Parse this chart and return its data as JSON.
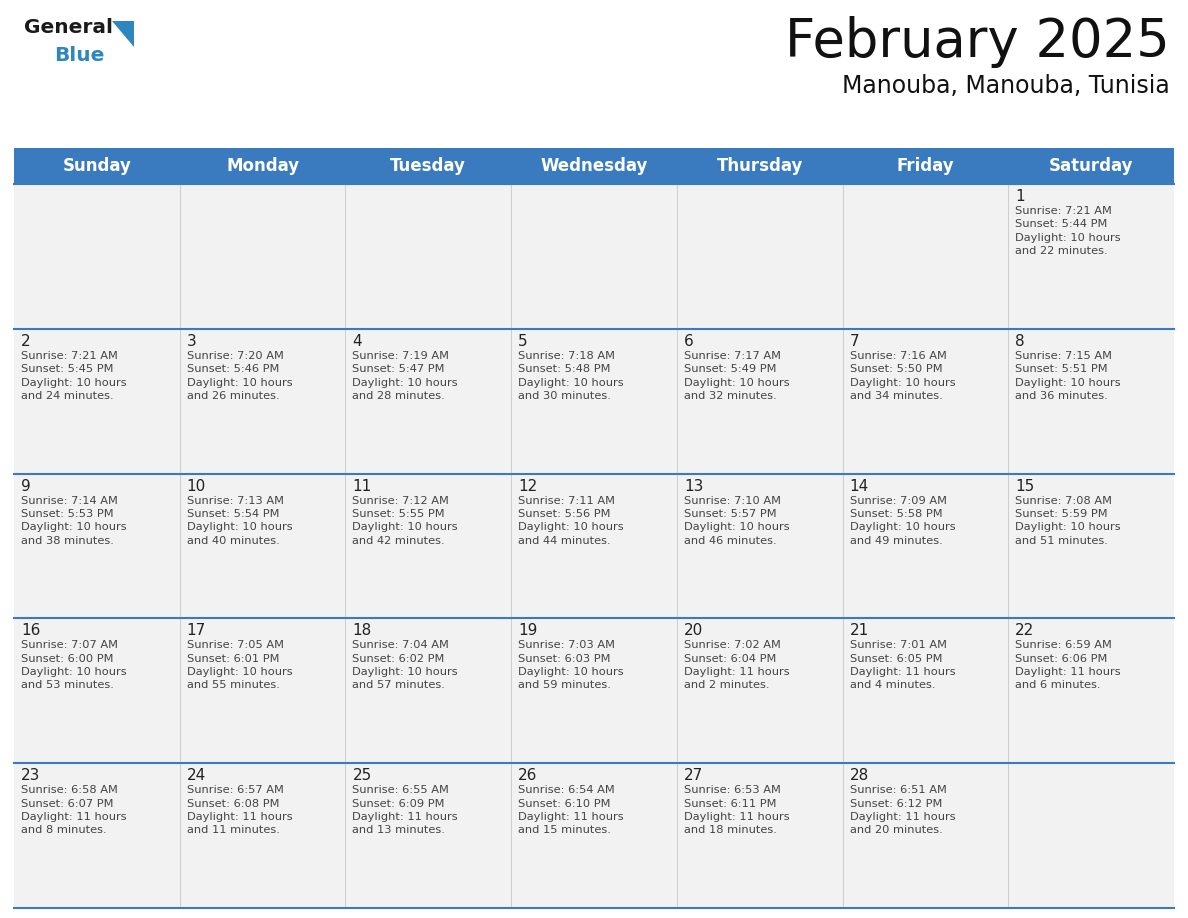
{
  "title": "February 2025",
  "subtitle": "Manouba, Manouba, Tunisia",
  "header_bg": "#3a7bbf",
  "header_text_color": "#ffffff",
  "header_font_size": 12,
  "day_names": [
    "Sunday",
    "Monday",
    "Tuesday",
    "Wednesday",
    "Thursday",
    "Friday",
    "Saturday"
  ],
  "title_font_size": 38,
  "subtitle_font_size": 17,
  "cell_text_color": "#444444",
  "day_num_color": "#222222",
  "info_font_size": 8.2,
  "day_num_font_size": 11,
  "cell_bg": "#f2f2f2",
  "line_color": "#3a7bbf",
  "logo_blue_color": "#2e86c1",
  "weeks": [
    {
      "days": [
        {
          "day": null,
          "info": null
        },
        {
          "day": null,
          "info": null
        },
        {
          "day": null,
          "info": null
        },
        {
          "day": null,
          "info": null
        },
        {
          "day": null,
          "info": null
        },
        {
          "day": null,
          "info": null
        },
        {
          "day": 1,
          "info": "Sunrise: 7:21 AM\nSunset: 5:44 PM\nDaylight: 10 hours\nand 22 minutes."
        }
      ]
    },
    {
      "days": [
        {
          "day": 2,
          "info": "Sunrise: 7:21 AM\nSunset: 5:45 PM\nDaylight: 10 hours\nand 24 minutes."
        },
        {
          "day": 3,
          "info": "Sunrise: 7:20 AM\nSunset: 5:46 PM\nDaylight: 10 hours\nand 26 minutes."
        },
        {
          "day": 4,
          "info": "Sunrise: 7:19 AM\nSunset: 5:47 PM\nDaylight: 10 hours\nand 28 minutes."
        },
        {
          "day": 5,
          "info": "Sunrise: 7:18 AM\nSunset: 5:48 PM\nDaylight: 10 hours\nand 30 minutes."
        },
        {
          "day": 6,
          "info": "Sunrise: 7:17 AM\nSunset: 5:49 PM\nDaylight: 10 hours\nand 32 minutes."
        },
        {
          "day": 7,
          "info": "Sunrise: 7:16 AM\nSunset: 5:50 PM\nDaylight: 10 hours\nand 34 minutes."
        },
        {
          "day": 8,
          "info": "Sunrise: 7:15 AM\nSunset: 5:51 PM\nDaylight: 10 hours\nand 36 minutes."
        }
      ]
    },
    {
      "days": [
        {
          "day": 9,
          "info": "Sunrise: 7:14 AM\nSunset: 5:53 PM\nDaylight: 10 hours\nand 38 minutes."
        },
        {
          "day": 10,
          "info": "Sunrise: 7:13 AM\nSunset: 5:54 PM\nDaylight: 10 hours\nand 40 minutes."
        },
        {
          "day": 11,
          "info": "Sunrise: 7:12 AM\nSunset: 5:55 PM\nDaylight: 10 hours\nand 42 minutes."
        },
        {
          "day": 12,
          "info": "Sunrise: 7:11 AM\nSunset: 5:56 PM\nDaylight: 10 hours\nand 44 minutes."
        },
        {
          "day": 13,
          "info": "Sunrise: 7:10 AM\nSunset: 5:57 PM\nDaylight: 10 hours\nand 46 minutes."
        },
        {
          "day": 14,
          "info": "Sunrise: 7:09 AM\nSunset: 5:58 PM\nDaylight: 10 hours\nand 49 minutes."
        },
        {
          "day": 15,
          "info": "Sunrise: 7:08 AM\nSunset: 5:59 PM\nDaylight: 10 hours\nand 51 minutes."
        }
      ]
    },
    {
      "days": [
        {
          "day": 16,
          "info": "Sunrise: 7:07 AM\nSunset: 6:00 PM\nDaylight: 10 hours\nand 53 minutes."
        },
        {
          "day": 17,
          "info": "Sunrise: 7:05 AM\nSunset: 6:01 PM\nDaylight: 10 hours\nand 55 minutes."
        },
        {
          "day": 18,
          "info": "Sunrise: 7:04 AM\nSunset: 6:02 PM\nDaylight: 10 hours\nand 57 minutes."
        },
        {
          "day": 19,
          "info": "Sunrise: 7:03 AM\nSunset: 6:03 PM\nDaylight: 10 hours\nand 59 minutes."
        },
        {
          "day": 20,
          "info": "Sunrise: 7:02 AM\nSunset: 6:04 PM\nDaylight: 11 hours\nand 2 minutes."
        },
        {
          "day": 21,
          "info": "Sunrise: 7:01 AM\nSunset: 6:05 PM\nDaylight: 11 hours\nand 4 minutes."
        },
        {
          "day": 22,
          "info": "Sunrise: 6:59 AM\nSunset: 6:06 PM\nDaylight: 11 hours\nand 6 minutes."
        }
      ]
    },
    {
      "days": [
        {
          "day": 23,
          "info": "Sunrise: 6:58 AM\nSunset: 6:07 PM\nDaylight: 11 hours\nand 8 minutes."
        },
        {
          "day": 24,
          "info": "Sunrise: 6:57 AM\nSunset: 6:08 PM\nDaylight: 11 hours\nand 11 minutes."
        },
        {
          "day": 25,
          "info": "Sunrise: 6:55 AM\nSunset: 6:09 PM\nDaylight: 11 hours\nand 13 minutes."
        },
        {
          "day": 26,
          "info": "Sunrise: 6:54 AM\nSunset: 6:10 PM\nDaylight: 11 hours\nand 15 minutes."
        },
        {
          "day": 27,
          "info": "Sunrise: 6:53 AM\nSunset: 6:11 PM\nDaylight: 11 hours\nand 18 minutes."
        },
        {
          "day": 28,
          "info": "Sunrise: 6:51 AM\nSunset: 6:12 PM\nDaylight: 11 hours\nand 20 minutes."
        },
        {
          "day": null,
          "info": null
        }
      ]
    }
  ]
}
